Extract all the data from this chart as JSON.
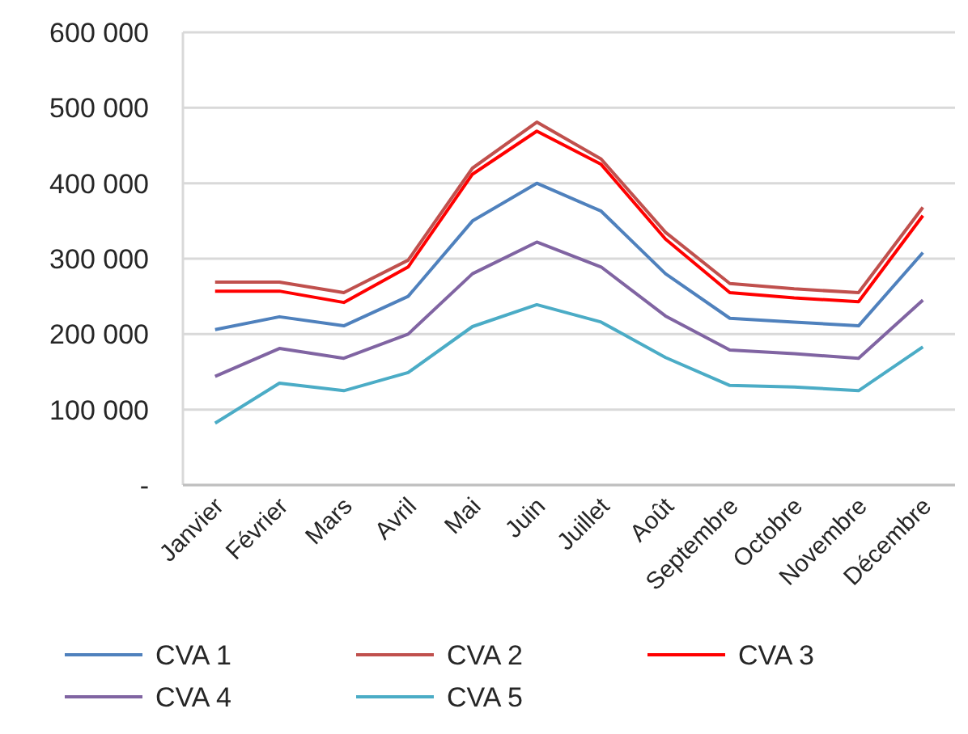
{
  "chart_data": {
    "type": "line",
    "categories": [
      "Janvier",
      "Février",
      "Mars",
      "Avril",
      "Mai",
      "Juin",
      "Juillet",
      "Août",
      "Septembre",
      "Octobre",
      "Novembre",
      "Décembre"
    ],
    "series": [
      {
        "name": "CVA 1",
        "color": "#4f81bd",
        "values": [
          206000,
          223000,
          211000,
          250000,
          350000,
          400000,
          363000,
          280000,
          221000,
          216000,
          211000,
          308000
        ]
      },
      {
        "name": "CVA 2",
        "color": "#c0504d",
        "values": [
          269000,
          269000,
          255000,
          298000,
          420000,
          481000,
          432000,
          335000,
          267000,
          260000,
          255000,
          368000
        ]
      },
      {
        "name": "CVA 3",
        "color": "#ff0000",
        "values": [
          257000,
          257000,
          242000,
          289000,
          412000,
          469000,
          425000,
          326000,
          255000,
          248000,
          243000,
          357000
        ]
      },
      {
        "name": "CVA 4",
        "color": "#8064a2",
        "values": [
          144000,
          181000,
          168000,
          200000,
          280000,
          322000,
          289000,
          224000,
          179000,
          174000,
          168000,
          245000
        ]
      },
      {
        "name": "CVA 5",
        "color": "#4bacc6",
        "values": [
          82000,
          135000,
          125000,
          149000,
          210000,
          239000,
          216000,
          169000,
          132000,
          130000,
          125000,
          183000
        ]
      }
    ],
    "ylim": [
      0,
      600000
    ],
    "yticks": [
      {
        "value": 0,
        "label": "-"
      },
      {
        "value": 100000,
        "label": "100 000"
      },
      {
        "value": 200000,
        "label": "200 000"
      },
      {
        "value": 300000,
        "label": "300 000"
      },
      {
        "value": 400000,
        "label": "400 000"
      },
      {
        "value": 500000,
        "label": "500 000"
      },
      {
        "value": 600000,
        "label": "600 000"
      }
    ],
    "grid": "y",
    "legend": "bottom",
    "marker": "none",
    "line_style": "solid"
  }
}
